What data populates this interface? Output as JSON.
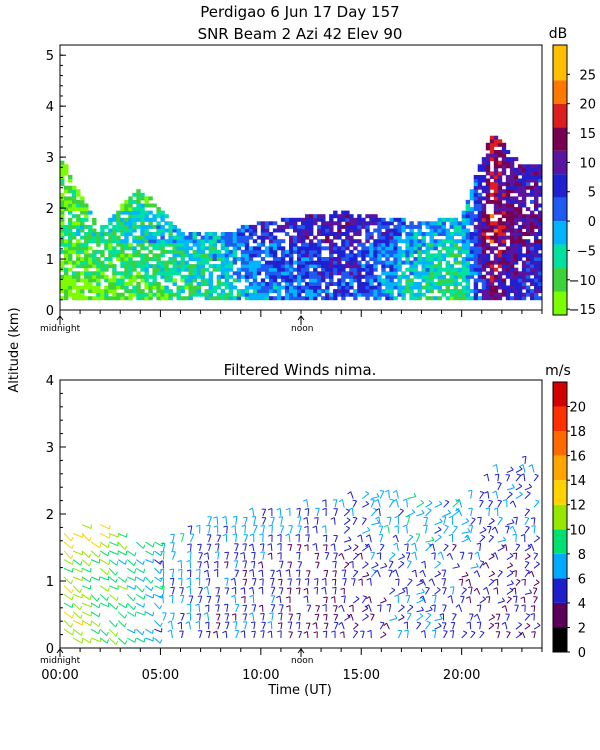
{
  "chart_data": [
    {
      "type": "heatmap",
      "title": "Perdigao   6 Jun 17 Day 157",
      "subtitle": "SNR Beam 2 Azi  42 Elev 90",
      "ylabel": "Altitude (km)",
      "ylim": [
        0,
        5.2
      ],
      "yticks": [
        "0",
        "1",
        "2",
        "3",
        "4",
        "5"
      ],
      "xlim": [
        0,
        24
      ],
      "x_markers": [
        {
          "label": "midnight",
          "x": 0
        },
        {
          "label": "noon",
          "x": 12
        }
      ],
      "colorbar": {
        "unit": "dB",
        "range": [
          -16,
          30
        ],
        "ticks": [
          "25",
          "20",
          "15",
          "10",
          "5",
          "0",
          "−5",
          "−10",
          "−15"
        ],
        "levels": [
          {
            "min": -16,
            "max": -12,
            "color": "#7cfc00"
          },
          {
            "min": -12,
            "max": -8,
            "color": "#3cd23c"
          },
          {
            "min": -8,
            "max": -4,
            "color": "#00e0a0"
          },
          {
            "min": -4,
            "max": 0,
            "color": "#00b4ff"
          },
          {
            "min": 0,
            "max": 4,
            "color": "#1e5af0"
          },
          {
            "min": 4,
            "max": 8,
            "color": "#2020d0"
          },
          {
            "min": 8,
            "max": 12,
            "color": "#5a14a0"
          },
          {
            "min": 12,
            "max": 16,
            "color": "#780050"
          },
          {
            "min": 16,
            "max": 20,
            "color": "#dc1e1e"
          },
          {
            "min": 20,
            "max": 24,
            "color": "#ff7800"
          },
          {
            "min": 24,
            "max": 30,
            "color": "#ffbe00"
          }
        ]
      },
      "dominant_snr_db_by_hour": [
        {
          "t": 0,
          "top_km": 3.0,
          "snr_db": -12
        },
        {
          "t": 2,
          "top_km": 1.6,
          "snr_db": -10
        },
        {
          "t": 4,
          "top_km": 2.4,
          "snr_db": -8
        },
        {
          "t": 6,
          "top_km": 1.5,
          "snr_db": -6
        },
        {
          "t": 8,
          "top_km": 1.5,
          "snr_db": -4
        },
        {
          "t": 10,
          "top_km": 1.7,
          "snr_db": 2
        },
        {
          "t": 12,
          "top_km": 1.8,
          "snr_db": 4
        },
        {
          "t": 14,
          "top_km": 1.9,
          "snr_db": 6
        },
        {
          "t": 16,
          "top_km": 1.8,
          "snr_db": 2
        },
        {
          "t": 18,
          "top_km": 1.7,
          "snr_db": -4
        },
        {
          "t": 20,
          "top_km": 1.8,
          "snr_db": -6
        },
        {
          "t": 21.5,
          "top_km": 3.5,
          "snr_db": 14
        },
        {
          "t": 23,
          "top_km": 2.8,
          "snr_db": 8
        }
      ]
    },
    {
      "type": "scatter",
      "title": "Filtered Winds nima.",
      "xlabel": "Time (UT)",
      "ylabel": "Altitude (km)",
      "xlim": [
        0,
        24
      ],
      "ylim": [
        0,
        4
      ],
      "xticks": [
        "00:00",
        "05:00",
        "10:00",
        "15:00",
        "20:00"
      ],
      "yticks": [
        "0",
        "1",
        "2",
        "3",
        "4"
      ],
      "x_markers": [
        {
          "label": "midnight",
          "x": 0
        },
        {
          "label": "noon",
          "x": 12
        }
      ],
      "colorbar": {
        "unit": "m/s",
        "range": [
          0,
          22
        ],
        "ticks": [
          "20",
          "18",
          "16",
          "14",
          "12",
          "10",
          "8",
          "6",
          "4",
          "2",
          "0"
        ],
        "levels": [
          {
            "min": 0,
            "max": 2,
            "color": "#000000"
          },
          {
            "min": 2,
            "max": 4,
            "color": "#5a005a"
          },
          {
            "min": 4,
            "max": 6,
            "color": "#1e1ecc"
          },
          {
            "min": 6,
            "max": 8,
            "color": "#00aaff"
          },
          {
            "min": 8,
            "max": 10,
            "color": "#00e070"
          },
          {
            "min": 10,
            "max": 12,
            "color": "#96e600"
          },
          {
            "min": 12,
            "max": 14,
            "color": "#ffd200"
          },
          {
            "min": 14,
            "max": 16,
            "color": "#ffa500"
          },
          {
            "min": 16,
            "max": 18,
            "color": "#ff6a00"
          },
          {
            "min": 18,
            "max": 20,
            "color": "#ff3000"
          },
          {
            "min": 20,
            "max": 22,
            "color": "#d20000"
          }
        ]
      },
      "wind_speed_ms_by_hour": [
        {
          "t": 0,
          "max_alt_km": 1.8,
          "speed_ms": 11
        },
        {
          "t": 2,
          "max_alt_km": 1.9,
          "speed_ms": 10
        },
        {
          "t": 4,
          "max_alt_km": 1.6,
          "speed_ms": 8
        },
        {
          "t": 6,
          "max_alt_km": 1.7,
          "speed_ms": 6
        },
        {
          "t": 8,
          "max_alt_km": 1.9,
          "speed_ms": 5
        },
        {
          "t": 10,
          "max_alt_km": 2.0,
          "speed_ms": 5
        },
        {
          "t": 12,
          "max_alt_km": 2.1,
          "speed_ms": 4
        },
        {
          "t": 14,
          "max_alt_km": 2.2,
          "speed_ms": 4
        },
        {
          "t": 16,
          "max_alt_km": 2.3,
          "speed_ms": 5
        },
        {
          "t": 18,
          "max_alt_km": 2.2,
          "speed_ms": 6
        },
        {
          "t": 20,
          "max_alt_km": 2.2,
          "speed_ms": 5
        },
        {
          "t": 22,
          "max_alt_km": 2.7,
          "speed_ms": 4
        },
        {
          "t": 23.5,
          "max_alt_km": 2.8,
          "speed_ms": 4
        }
      ]
    }
  ]
}
